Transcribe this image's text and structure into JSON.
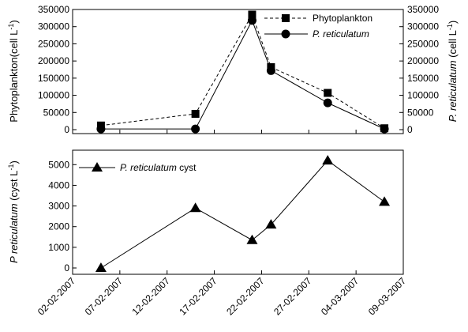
{
  "chart_data": [
    {
      "type": "line",
      "x": [
        "2007-02-05",
        "2007-02-15",
        "2007-02-21",
        "2007-02-23",
        "2007-03-01",
        "2007-03-07"
      ],
      "series": [
        {
          "name": "Phytoplankton",
          "values": [
            12000,
            46000,
            335000,
            182000,
            107000,
            4000
          ],
          "marker": "square",
          "line": "dashed"
        },
        {
          "name_prefix": "P. reticulatum",
          "name": "P. reticulatum",
          "values": [
            2000,
            2000,
            318000,
            172000,
            78000,
            2000
          ],
          "marker": "circle",
          "line": "solid"
        }
      ],
      "ylabel": "Phytoplankton(cell L⁻¹)",
      "ylabel_right": "P. reticulatum (cell L⁻¹)",
      "ylim": [
        0,
        350000
      ],
      "yticks": [
        0,
        50000,
        100000,
        150000,
        200000,
        250000,
        300000,
        350000
      ],
      "legend_position": "top-right",
      "grid": false
    },
    {
      "type": "line",
      "x": [
        "2007-02-05",
        "2007-02-15",
        "2007-02-21",
        "2007-02-23",
        "2007-03-01",
        "2007-03-07"
      ],
      "series": [
        {
          "name": "P. reticulatum cyst",
          "values": [
            0,
            2900,
            1350,
            2100,
            5200,
            3200
          ],
          "marker": "triangle",
          "line": "solid"
        }
      ],
      "ylabel": "P reticulatum (cyst L⁻¹)",
      "ylim": [
        0,
        5700
      ],
      "yticks": [
        0,
        1000,
        2000,
        3000,
        4000,
        5000
      ],
      "xticks": [
        "02-02-2007",
        "07-02-2007",
        "12-02-2007",
        "17-02-2007",
        "22-02-2007",
        "27-02-2007",
        "04-03-2007",
        "09-03-2007"
      ],
      "legend_position": "top-left",
      "grid": false
    }
  ],
  "legend": {
    "top_series1": "Phytoplankton",
    "top_series2": "P. reticulatum",
    "bottom_series_italic": "P. reticulatum",
    "bottom_series_suffix": " cyst"
  },
  "labels": {
    "top_left_main": "Phytoplankton(cell L",
    "top_left_sup": "-1",
    "top_left_end": ")",
    "top_right_italic": "P. reticulatum",
    "top_right_main": " (cell L",
    "top_right_sup": "-1",
    "top_right_end": ")",
    "bottom_italic": "P reticulatum",
    "bottom_main": " (cyst L",
    "bottom_sup": "-1",
    "bottom_end": ")"
  },
  "xtick_labels": [
    "02-02-2007",
    "07-02-2007",
    "12-02-2007",
    "17-02-2007",
    "22-02-2007",
    "27-02-2007",
    "04-03-2007",
    "09-03-2007"
  ],
  "xtick_dates": [
    "2007-02-02",
    "2007-02-07",
    "2007-02-12",
    "2007-02-17",
    "2007-02-22",
    "2007-02-27",
    "2007-03-04",
    "2007-03-09"
  ]
}
